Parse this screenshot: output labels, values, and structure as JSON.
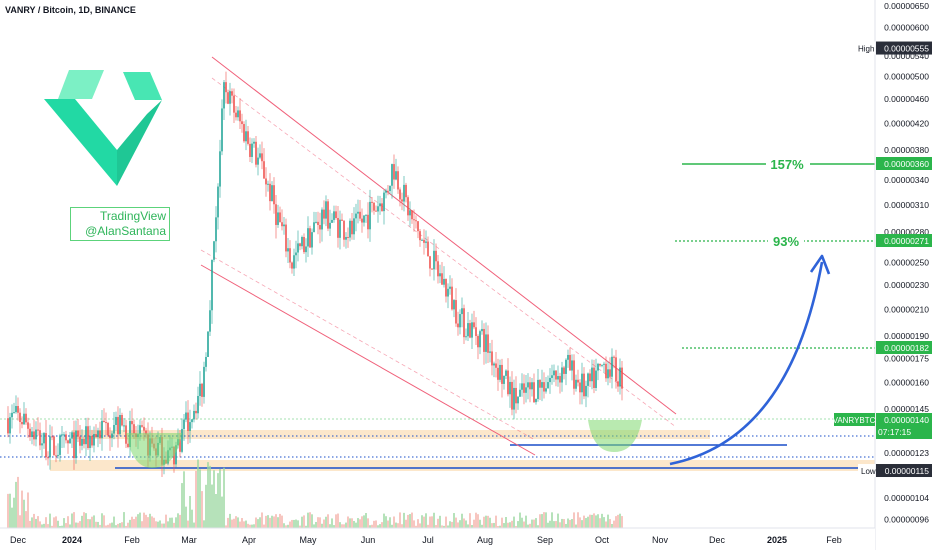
{
  "header": {
    "title": "VANRY / Bitcoin, 1D, BINANCE"
  },
  "watermark": {
    "line1": "TradingView",
    "line2": "@AlanSantana"
  },
  "colors": {
    "bull": "#26a69a",
    "bear": "#ef5350",
    "band": "#fbe3c2",
    "green": "#2bb54b",
    "channel": "#f0607a",
    "blue": "#1a4fc9",
    "arrow": "#2f63d8",
    "logo": "#22d9a4"
  },
  "targets": [
    {
      "label": "157%",
      "price": 3.6e-06,
      "style": "solid"
    },
    {
      "label": "93%",
      "price": 2.71e-06,
      "style": "dotted"
    }
  ],
  "y_axis": {
    "ticks": [
      "0.00000650",
      "0.00000600",
      "0.00000540",
      "0.00000500",
      "0.00000460",
      "0.00000420",
      "0.00000380",
      "0.00000340",
      "0.00000310",
      "0.00000280",
      "0.00000250",
      "0.00000230",
      "0.00000210",
      "0.00000190",
      "0.00000175",
      "0.00000160",
      "0.00000145",
      "0.00000123",
      "0.00000104",
      "0.00000096"
    ],
    "badges": {
      "high_label": "High",
      "high_value": "0.00000555",
      "t157": "0.00000360",
      "t93": "0.00000271",
      "level": "0.00000182",
      "symbol": "VANRYBTC",
      "current": "0.00000140",
      "countdown": "07:17:15",
      "low_label": "Low",
      "low_value": "0.00000115"
    }
  },
  "x_axis": {
    "ticks": [
      "Dec",
      "2024",
      "Feb",
      "Mar",
      "Apr",
      "May",
      "Jun",
      "Jul",
      "Aug",
      "Sep",
      "Oct",
      "Nov",
      "Dec",
      "2025",
      "Feb"
    ]
  },
  "chart_data": {
    "type": "line",
    "title": "VANRY / Bitcoin, 1D, BINANCE",
    "xlabel": "",
    "ylabel": "",
    "ylim": [
      9.3e-07,
      6.65e-06
    ],
    "y_scale": "log",
    "x": [
      "2023-12-01",
      "2023-12-15",
      "2024-01-01",
      "2024-01-15",
      "2024-02-01",
      "2024-02-15",
      "2024-03-01",
      "2024-03-05",
      "2024-03-12",
      "2024-03-20",
      "2024-04-01",
      "2024-04-15",
      "2024-05-01",
      "2024-05-15",
      "2024-06-01",
      "2024-06-05",
      "2024-06-15",
      "2024-07-01",
      "2024-07-10",
      "2024-07-20",
      "2024-08-05",
      "2024-08-20",
      "2024-09-01",
      "2024-09-10",
      "2024-09-20",
      "2024-10-01",
      "2024-10-05",
      "2024-10-10",
      "2024-10-15"
    ],
    "series": [
      {
        "values": [
          1.4e-06,
          1.25e-06,
          1.28e-06,
          1.38e-06,
          1.28e-06,
          1.22e-06,
          1.58e-06,
          2.25e-06,
          4.8e-06,
          4.2e-06,
          3.5e-06,
          2.5e-06,
          3e-06,
          2.8e-06,
          3.2e-06,
          3.6e-06,
          2.9e-06,
          2.3e-06,
          2e-06,
          1.9e-06,
          1.5e-06,
          1.6e-06,
          1.7e-06,
          1.55e-06,
          1.72e-06,
          1.6e-06,
          1.35e-06,
          1.32e-06,
          1.4e-06
        ]
      }
    ],
    "high": 5.55e-06,
    "low": 1.15e-06,
    "last": 1.4e-06,
    "levels": [
      3.6e-06,
      2.71e-06,
      1.82e-06,
      1.4e-06,
      1.15e-06
    ]
  }
}
